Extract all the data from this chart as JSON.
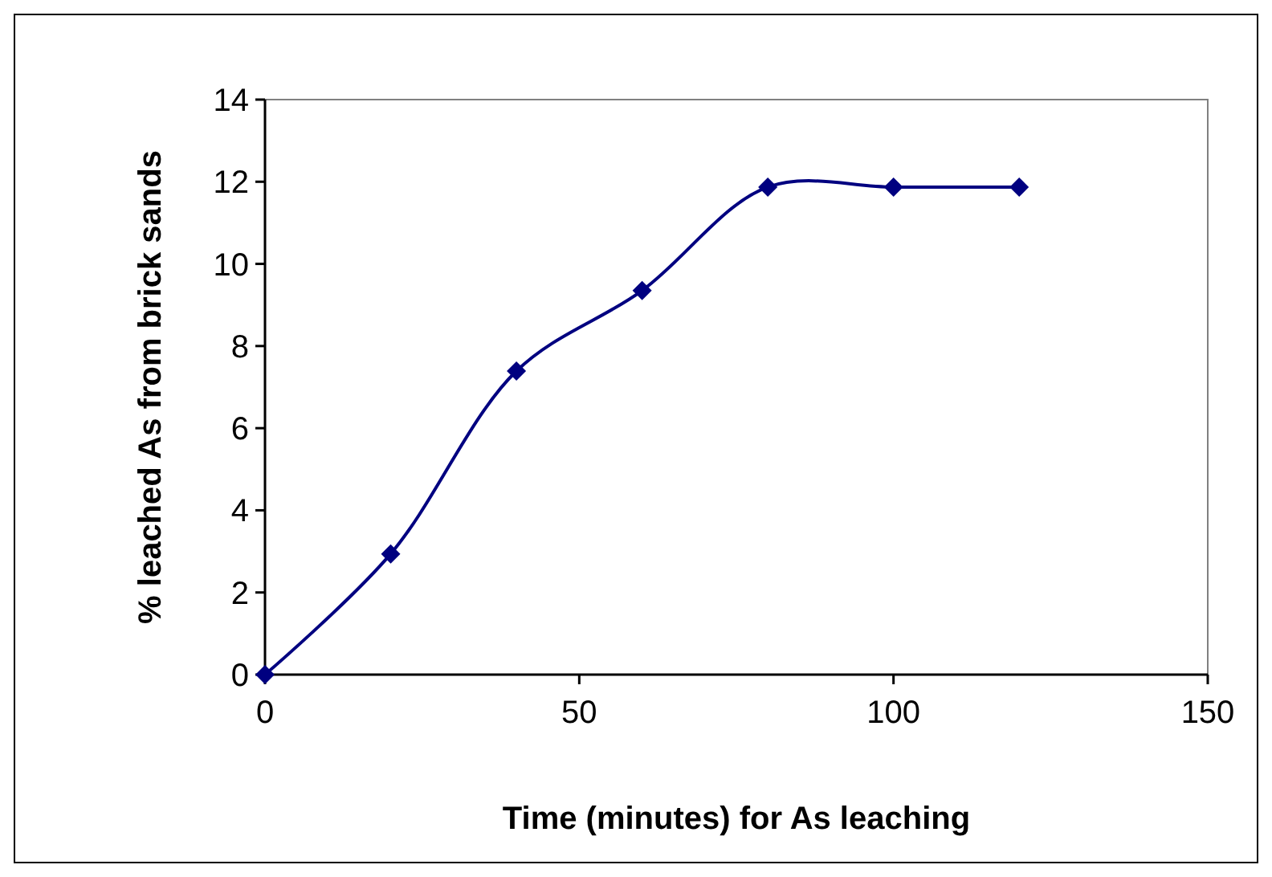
{
  "chart_data": {
    "type": "line",
    "xlabel": "Time (minutes) for As leaching",
    "ylabel": "% leached As from brick sands",
    "x": [
      0,
      20,
      40,
      60,
      80,
      100,
      120
    ],
    "series": [
      {
        "color": "#000080",
        "values": [
          0,
          2.94,
          7.39,
          9.35,
          11.87,
          11.87,
          11.87
        ]
      }
    ],
    "xlim": [
      0,
      150
    ],
    "xticks": [
      0,
      50,
      100,
      150
    ],
    "ylim": [
      0,
      14
    ],
    "yticks": [
      0,
      2,
      4,
      6,
      8,
      10,
      12,
      14
    ],
    "marker": "diamond",
    "line_style": "solid"
  }
}
